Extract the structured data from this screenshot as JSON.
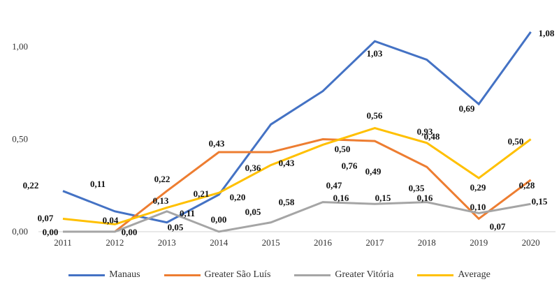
{
  "chart_data": {
    "type": "line",
    "x": [
      "2011",
      "2012",
      "2013",
      "2014",
      "2015",
      "2016",
      "2017",
      "2018",
      "2019",
      "2020"
    ],
    "ylim": [
      0,
      1.08
    ],
    "yticks": [
      "0,00",
      "0,50",
      "1,00"
    ],
    "ytick_values": [
      0,
      0.5,
      1.0
    ],
    "grid": false,
    "legend": "bottom",
    "series": [
      {
        "name": "Manaus",
        "color": "#4472C4",
        "values": [
          0.22,
          0.11,
          0.05,
          0.2,
          0.58,
          0.76,
          1.03,
          0.93,
          0.69,
          1.08
        ],
        "labels": [
          "0,22",
          "0,11",
          "0,05",
          "0,20",
          "0,58",
          "0,76",
          "1,03",
          "0,93",
          "0,69",
          "1,08"
        ]
      },
      {
        "name": "Greater São Luís",
        "color": "#ED7D31",
        "values": [
          null,
          0.0,
          0.22,
          0.43,
          0.43,
          0.5,
          0.49,
          0.35,
          0.07,
          0.28
        ],
        "labels": [
          null,
          "0,00",
          "0,22",
          "0,43",
          "0,43",
          "0,50",
          "0,49",
          "0,35",
          "0,07",
          "0,28"
        ]
      },
      {
        "name": "Greater Vitória",
        "color": "#A5A5A5",
        "values": [
          0.0,
          0.0,
          0.11,
          0.0,
          0.05,
          0.16,
          0.15,
          0.16,
          0.1,
          0.15
        ],
        "labels": [
          "0,00",
          null,
          "0,11",
          "0,00",
          "0,05",
          "0,16",
          "0,15",
          "0,16",
          "0,10",
          "0,15"
        ]
      },
      {
        "name": "Average",
        "color": "#FFC000",
        "values": [
          0.07,
          0.04,
          0.13,
          0.21,
          0.36,
          0.47,
          0.56,
          0.48,
          0.29,
          0.5
        ],
        "labels": [
          "0,07",
          "0,04",
          "0,13",
          "0,21",
          "0,36",
          "0,47",
          "0,56",
          "0,48",
          "0,29",
          "0,50"
        ]
      }
    ]
  }
}
